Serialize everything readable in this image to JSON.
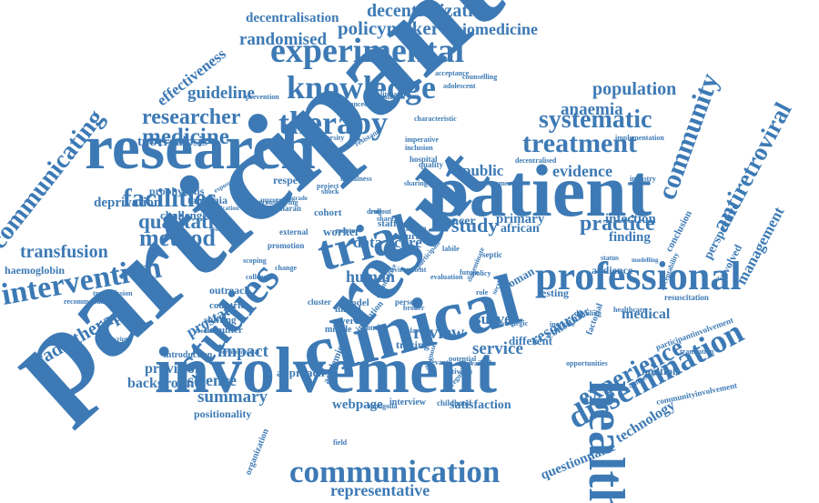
{
  "color": "#3d7ab5",
  "words": [
    {
      "text": "participant",
      "angle": -42
    },
    {
      "text": "involvement"
    },
    {
      "text": "clinical",
      "angle": -15
    },
    {
      "text": "patient"
    },
    {
      "text": "result",
      "angle": -50
    },
    {
      "text": "research"
    },
    {
      "text": "trial",
      "angle": -15
    },
    {
      "text": "health",
      "angle": 90
    },
    {
      "text": "studies",
      "angle": -50
    },
    {
      "text": "professional"
    },
    {
      "text": "experimental"
    },
    {
      "text": "knowledge"
    },
    {
      "text": "communication"
    },
    {
      "text": "dissemination",
      "angle": -28
    },
    {
      "text": "experience",
      "angle": -28
    },
    {
      "text": "community",
      "angle": -70
    },
    {
      "text": "therapy"
    },
    {
      "text": "treatment"
    },
    {
      "text": "systematic"
    },
    {
      "text": "intervention",
      "angle": -10
    },
    {
      "text": "practice"
    },
    {
      "text": "facilities"
    },
    {
      "text": "qualitative"
    },
    {
      "text": "method"
    },
    {
      "text": "communicating",
      "angle": -52
    },
    {
      "text": "antiretroviral",
      "angle": -62
    },
    {
      "text": "researcher"
    },
    {
      "text": "medicine"
    },
    {
      "text": "population"
    },
    {
      "text": "decentralization"
    },
    {
      "text": "policymaker"
    },
    {
      "text": "biomedicine"
    },
    {
      "text": "randomised"
    },
    {
      "text": "guideline"
    },
    {
      "text": "study"
    },
    {
      "text": "review"
    },
    {
      "text": "service"
    },
    {
      "text": "transfusion"
    },
    {
      "text": "evidence"
    },
    {
      "text": "anaemia"
    },
    {
      "text": "summary"
    },
    {
      "text": "science"
    },
    {
      "text": "impact"
    },
    {
      "text": "survey"
    },
    {
      "text": "public"
    },
    {
      "text": "effectiveness",
      "angle": -38
    },
    {
      "text": "decentralisation"
    },
    {
      "text": "radiotherapy",
      "angle": -30
    },
    {
      "text": "webpage"
    },
    {
      "text": "representative"
    },
    {
      "text": "technology",
      "angle": -32
    },
    {
      "text": "questionnaire",
      "angle": -22
    },
    {
      "text": "resource",
      "angle": -30
    },
    {
      "text": "medical"
    },
    {
      "text": "management",
      "angle": -62
    },
    {
      "text": "human"
    },
    {
      "text": "data"
    },
    {
      "text": "care"
    },
    {
      "text": "tuberculosis"
    },
    {
      "text": "deprivation"
    },
    {
      "text": "prostate",
      "angle": -30
    },
    {
      "text": "background"
    },
    {
      "text": "provision"
    },
    {
      "text": "finding"
    },
    {
      "text": "infection"
    },
    {
      "text": "cancer"
    },
    {
      "text": "primary"
    },
    {
      "text": "african"
    },
    {
      "text": "satisfaction"
    },
    {
      "text": "perspective",
      "angle": -62
    },
    {
      "text": "involved",
      "angle": -62
    },
    {
      "text": "haemoglobin"
    },
    {
      "text": "challenge"
    },
    {
      "text": "tanzania"
    },
    {
      "text": "prophylaxis"
    },
    {
      "text": "worker"
    },
    {
      "text": "cohort"
    },
    {
      "text": "approach"
    },
    {
      "text": "consumer",
      "angle": -32
    },
    {
      "text": "audience"
    },
    {
      "text": "resuscitation"
    },
    {
      "text": "counselling"
    },
    {
      "text": "acceptance"
    },
    {
      "text": "adolescent"
    },
    {
      "text": "prevention"
    },
    {
      "text": "advanced"
    },
    {
      "text": "information"
    },
    {
      "text": "literature"
    },
    {
      "text": "university"
    },
    {
      "text": "implementation"
    },
    {
      "text": "different"
    },
    {
      "text": "tracing"
    },
    {
      "text": "woman",
      "angle": -30
    },
    {
      "text": "testing"
    },
    {
      "text": "positionality"
    },
    {
      "text": "introduction"
    },
    {
      "text": "outreach"
    },
    {
      "text": "countrie"
    },
    {
      "text": "shifting"
    },
    {
      "text": "defaulter"
    },
    {
      "text": "participantinvolvement",
      "angle": -20
    },
    {
      "text": "communityinvolvement",
      "angle": -12
    },
    {
      "text": "transmission"
    },
    {
      "text": "recommendation"
    },
    {
      "text": "feedback"
    },
    {
      "text": "interview"
    },
    {
      "text": "childhood"
    },
    {
      "text": "organization",
      "angle": -68
    },
    {
      "text": "academic",
      "angle": -68
    },
    {
      "text": "respect"
    },
    {
      "text": "staff"
    },
    {
      "text": "rural"
    },
    {
      "text": "mixed"
    },
    {
      "text": "severe"
    },
    {
      "text": "middle"
    },
    {
      "text": "model"
    },
    {
      "text": "london"
    },
    {
      "text": "person"
    },
    {
      "text": "cluster"
    },
    {
      "text": "college"
    },
    {
      "text": "scoping"
    },
    {
      "text": "saharan"
    },
    {
      "text": "external"
    },
    {
      "text": "africa"
    },
    {
      "text": "healthcare"
    },
    {
      "text": "increase"
    },
    {
      "text": "detailing"
    },
    {
      "text": "opportunities"
    },
    {
      "text": "translation"
    },
    {
      "text": "factorial",
      "angle": -70
    },
    {
      "text": "conclusion",
      "angle": -62
    },
    {
      "text": "invitation",
      "angle": -50
    },
    {
      "text": "hospital"
    },
    {
      "text": "quality"
    },
    {
      "text": "sharing"
    },
    {
      "text": "inclusion"
    },
    {
      "text": "imperative"
    },
    {
      "text": "decentralised"
    },
    {
      "text": "malaria"
    },
    {
      "text": "potential"
    },
    {
      "text": "mongolia"
    },
    {
      "text": "relevant"
    },
    {
      "text": "activities"
    },
    {
      "text": "commercial"
    },
    {
      "text": "available"
    },
    {
      "text": "strategic"
    },
    {
      "text": "labile"
    },
    {
      "text": "septic"
    },
    {
      "text": "broker"
    },
    {
      "text": "status"
    },
    {
      "text": "modelling"
    },
    {
      "text": "industry"
    },
    {
      "text": "usefulness"
    },
    {
      "text": "characteristic"
    },
    {
      "text": "resistant",
      "angle": -30
    },
    {
      "text": "exposure",
      "angle": -30
    },
    {
      "text": "identification"
    },
    {
      "text": "controlled"
    },
    {
      "text": "upgrade"
    },
    {
      "text": "appropriate"
    },
    {
      "text": "transcript"
    },
    {
      "text": "preventiontrial"
    },
    {
      "text": "reconsidering"
    },
    {
      "text": "promotion"
    },
    {
      "text": "change"
    },
    {
      "text": "mentor"
    },
    {
      "text": "shock"
    },
    {
      "text": "share"
    },
    {
      "text": "project"
    },
    {
      "text": "drug"
    },
    {
      "text": "rollout"
    },
    {
      "text": "field"
    },
    {
      "text": "multiple"
    },
    {
      "text": "acceptability",
      "angle": -68
    },
    {
      "text": "counseling",
      "angle": -30
    },
    {
      "text": "disseminate",
      "angle": -68
    },
    {
      "text": "quantitative",
      "angle": -62
    },
    {
      "text": "section",
      "angle": -62
    },
    {
      "text": "regulation",
      "angle": -50
    },
    {
      "text": "diagnose",
      "angle": -75
    },
    {
      "text": "participate",
      "angle": -50
    },
    {
      "text": "evaluation"
    },
    {
      "text": "environment"
    },
    {
      "text": "future"
    },
    {
      "text": "policy"
    },
    {
      "text": "role"
    },
    {
      "text": "group"
    },
    {
      "text": "needs"
    },
    {
      "text": "setting"
    }
  ]
}
